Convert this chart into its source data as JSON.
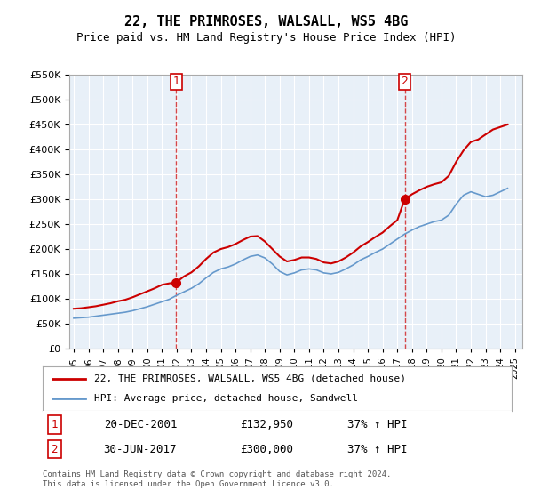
{
  "title": "22, THE PRIMROSES, WALSALL, WS5 4BG",
  "subtitle": "Price paid vs. HM Land Registry's House Price Index (HPI)",
  "legend_line1": "22, THE PRIMROSES, WALSALL, WS5 4BG (detached house)",
  "legend_line2": "HPI: Average price, detached house, Sandwell",
  "sale1_label": "1",
  "sale1_date": "20-DEC-2001",
  "sale1_price": "£132,950",
  "sale1_hpi": "37% ↑ HPI",
  "sale1_year": 2001.97,
  "sale2_label": "2",
  "sale2_date": "30-JUN-2017",
  "sale2_price": "£300,000",
  "sale2_hpi": "37% ↑ HPI",
  "sale2_year": 2017.5,
  "red_color": "#cc0000",
  "blue_color": "#6699cc",
  "background_color": "#e8f0f8",
  "plot_bg_color": "#e8f0f8",
  "ylim": [
    0,
    550000
  ],
  "xlim_start": 1995.0,
  "xlim_end": 2025.5,
  "footer": "Contains HM Land Registry data © Crown copyright and database right 2024.\nThis data is licensed under the Open Government Licence v3.0.",
  "hpi_years": [
    1995,
    1995.5,
    1996,
    1996.5,
    1997,
    1997.5,
    1998,
    1998.5,
    1999,
    1999.5,
    2000,
    2000.5,
    2001,
    2001.5,
    2002,
    2002.5,
    2003,
    2003.5,
    2004,
    2004.5,
    2005,
    2005.5,
    2006,
    2006.5,
    2007,
    2007.5,
    2008,
    2008.5,
    2009,
    2009.5,
    2010,
    2010.5,
    2011,
    2011.5,
    2012,
    2012.5,
    2013,
    2013.5,
    2014,
    2014.5,
    2015,
    2015.5,
    2016,
    2016.5,
    2017,
    2017.5,
    2018,
    2018.5,
    2019,
    2019.5,
    2020,
    2020.5,
    2021,
    2021.5,
    2022,
    2022.5,
    2023,
    2023.5,
    2024,
    2024.5
  ],
  "hpi_values": [
    61000,
    62000,
    63000,
    65000,
    67000,
    69000,
    71000,
    73000,
    76000,
    80000,
    84000,
    89000,
    94000,
    99000,
    107000,
    114000,
    121000,
    130000,
    142000,
    153000,
    160000,
    164000,
    170000,
    178000,
    185000,
    188000,
    182000,
    170000,
    155000,
    148000,
    152000,
    158000,
    160000,
    158000,
    152000,
    150000,
    153000,
    160000,
    168000,
    178000,
    185000,
    193000,
    200000,
    210000,
    220000,
    230000,
    238000,
    245000,
    250000,
    255000,
    258000,
    268000,
    290000,
    308000,
    315000,
    310000,
    305000,
    308000,
    315000,
    322000
  ],
  "red_years": [
    1995,
    1995.5,
    1996,
    1996.5,
    1997,
    1997.5,
    1998,
    1998.5,
    1999,
    1999.5,
    2000,
    2000.5,
    2001,
    2001.5,
    2001.97,
    2002.5,
    2003,
    2003.5,
    2004,
    2004.5,
    2005,
    2005.5,
    2006,
    2006.5,
    2007,
    2007.5,
    2008,
    2008.5,
    2009,
    2009.5,
    2010,
    2010.5,
    2011,
    2011.5,
    2012,
    2012.5,
    2013,
    2013.5,
    2014,
    2014.5,
    2015,
    2015.5,
    2016,
    2016.5,
    2017,
    2017.5,
    2018,
    2018.5,
    2019,
    2019.5,
    2020,
    2020.5,
    2021,
    2021.5,
    2022,
    2022.5,
    2023,
    2023.5,
    2024,
    2024.5
  ],
  "red_values": [
    80000,
    81000,
    83000,
    85000,
    88000,
    91000,
    95000,
    98000,
    103000,
    109000,
    115000,
    121000,
    128000,
    131000,
    132950,
    145000,
    153000,
    165000,
    180000,
    193000,
    200000,
    204000,
    210000,
    218000,
    225000,
    226000,
    215000,
    200000,
    185000,
    175000,
    178000,
    183000,
    183000,
    180000,
    173000,
    171000,
    175000,
    183000,
    193000,
    205000,
    214000,
    224000,
    233000,
    246000,
    258000,
    300000,
    310000,
    318000,
    325000,
    330000,
    334000,
    347000,
    375000,
    398000,
    415000,
    420000,
    430000,
    440000,
    445000,
    450000
  ]
}
